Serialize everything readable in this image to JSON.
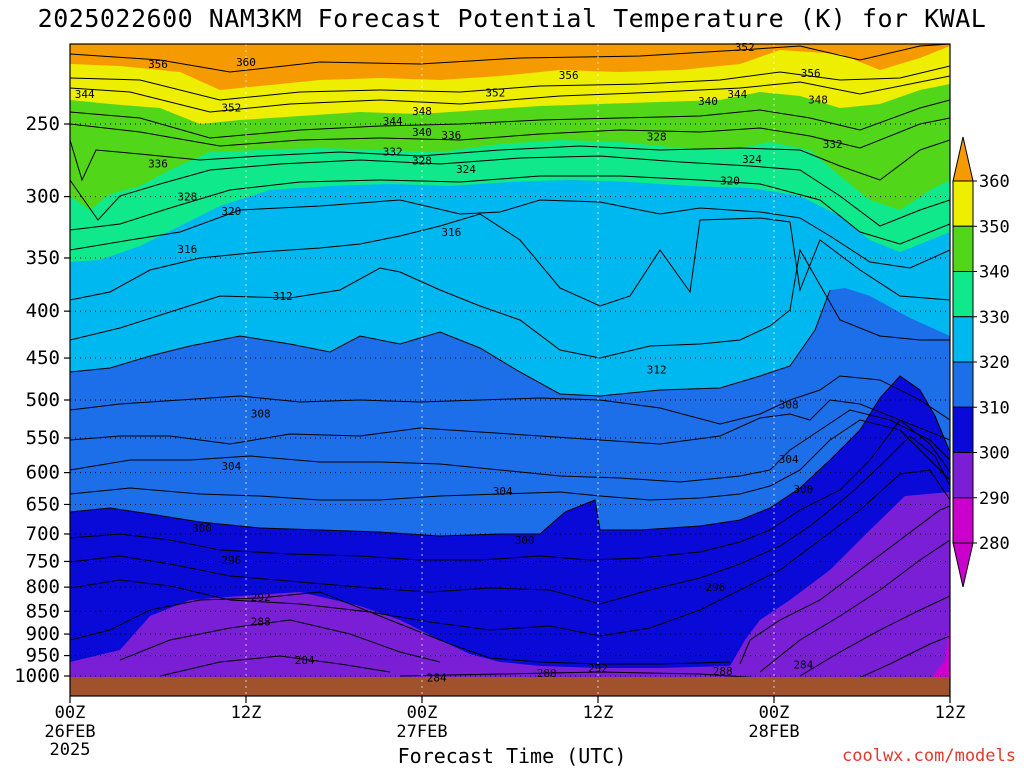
{
  "title": "2025022600 NAM3KM Forecast Potential Temperature (K) for KWAL",
  "credit": "coolwx.com/models",
  "x_axis_title": "Forecast Time (UTC)",
  "colors": {
    "ground": "#a0522d",
    "credit": "#e0392b",
    "band_280": "#cc00cc",
    "band_290": "#7a1fd6",
    "band_300": "#0a0ad8",
    "band_310": "#1c6fe8",
    "band_320": "#00b8f0",
    "band_330": "#10e88c",
    "band_340": "#52d61a",
    "band_350": "#eeee00",
    "band_360": "#f59a00"
  },
  "chart_data": {
    "type": "heatmap",
    "title": "2025022600 NAM3KM Forecast Potential Temperature (K) for KWAL",
    "xlabel": "Forecast Time (UTC)",
    "ylabel": "",
    "x_ticks": [
      {
        "label": "00Z",
        "sub": "26FEB",
        "sub2": "2025",
        "hour": 0
      },
      {
        "label": "12Z",
        "sub": "",
        "sub2": "",
        "hour": 12
      },
      {
        "label": "00Z",
        "sub": "27FEB",
        "sub2": "",
        "hour": 24
      },
      {
        "label": "12Z",
        "sub": "",
        "sub2": "",
        "hour": 36
      },
      {
        "label": "00Z",
        "sub": "28FEB",
        "sub2": "",
        "hour": 48
      },
      {
        "label": "12Z",
        "sub": "",
        "sub2": "",
        "hour": 60
      }
    ],
    "x_range_hours": [
      0,
      60
    ],
    "y_ticks_hpa": [
      250,
      300,
      350,
      400,
      450,
      500,
      550,
      600,
      650,
      700,
      750,
      800,
      850,
      900,
      950,
      1000
    ],
    "y_range_hpa": [
      200,
      1030
    ],
    "grid": "dotted",
    "colorbar": {
      "levels": [
        280,
        290,
        300,
        310,
        320,
        330,
        340,
        350,
        360
      ],
      "labels": [
        "280",
        "290",
        "300",
        "310",
        "320",
        "330",
        "340",
        "350",
        "360"
      ],
      "units": "K",
      "extend": "both"
    },
    "contour_labels": [
      {
        "text": "356",
        "hour": 6.0,
        "hpa": 215
      },
      {
        "text": "360",
        "hour": 12.0,
        "hpa": 214
      },
      {
        "text": "344",
        "hour": 1.0,
        "hpa": 232
      },
      {
        "text": "352",
        "hour": 11.0,
        "hpa": 240
      },
      {
        "text": "348",
        "hour": 24.0,
        "hpa": 242
      },
      {
        "text": "344",
        "hour": 22.0,
        "hpa": 248
      },
      {
        "text": "340",
        "hour": 24.0,
        "hpa": 255
      },
      {
        "text": "336",
        "hour": 26.0,
        "hpa": 257
      },
      {
        "text": "352",
        "hour": 29.0,
        "hpa": 231
      },
      {
        "text": "356",
        "hour": 34.0,
        "hpa": 221
      },
      {
        "text": "352",
        "hour": 46.0,
        "hpa": 206
      },
      {
        "text": "356",
        "hour": 50.5,
        "hpa": 220
      },
      {
        "text": "344",
        "hour": 45.5,
        "hpa": 232
      },
      {
        "text": "340",
        "hour": 43.5,
        "hpa": 236
      },
      {
        "text": "348",
        "hour": 51.0,
        "hpa": 235
      },
      {
        "text": "332",
        "hour": 22.0,
        "hpa": 268
      },
      {
        "text": "328",
        "hour": 24.0,
        "hpa": 274
      },
      {
        "text": "324",
        "hour": 27.0,
        "hpa": 280
      },
      {
        "text": "328",
        "hour": 40.0,
        "hpa": 258
      },
      {
        "text": "332",
        "hour": 52.0,
        "hpa": 263
      },
      {
        "text": "324",
        "hour": 46.5,
        "hpa": 273
      },
      {
        "text": "320",
        "hour": 45.0,
        "hpa": 288
      },
      {
        "text": "336",
        "hour": 6.0,
        "hpa": 276
      },
      {
        "text": "328",
        "hour": 8.0,
        "hpa": 300
      },
      {
        "text": "320",
        "hour": 11.0,
        "hpa": 311
      },
      {
        "text": "316",
        "hour": 8.0,
        "hpa": 342
      },
      {
        "text": "316",
        "hour": 26.0,
        "hpa": 328
      },
      {
        "text": "312",
        "hour": 14.5,
        "hpa": 385
      },
      {
        "text": "312",
        "hour": 40.0,
        "hpa": 463
      },
      {
        "text": "308",
        "hour": 13.0,
        "hpa": 517
      },
      {
        "text": "308",
        "hour": 49.0,
        "hpa": 506
      },
      {
        "text": "304",
        "hour": 11.0,
        "hpa": 590
      },
      {
        "text": "304",
        "hour": 29.5,
        "hpa": 628
      },
      {
        "text": "304",
        "hour": 49.0,
        "hpa": 580
      },
      {
        "text": "300",
        "hour": 9.0,
        "hpa": 690
      },
      {
        "text": "300",
        "hour": 31.0,
        "hpa": 711
      },
      {
        "text": "300",
        "hour": 50.0,
        "hpa": 625
      },
      {
        "text": "296",
        "hour": 11.0,
        "hpa": 747
      },
      {
        "text": "296",
        "hour": 44.0,
        "hpa": 800
      },
      {
        "text": "292",
        "hour": 13.0,
        "hpa": 820
      },
      {
        "text": "288",
        "hour": 13.0,
        "hpa": 872
      },
      {
        "text": "284",
        "hour": 16.0,
        "hpa": 961
      },
      {
        "text": "284",
        "hour": 50.0,
        "hpa": 971
      },
      {
        "text": "284",
        "hour": 25.0,
        "hpa": 1004
      },
      {
        "text": "288",
        "hour": 32.5,
        "hpa": 993
      },
      {
        "text": "292",
        "hour": 36.0,
        "hpa": 980
      },
      {
        "text": "288",
        "hour": 44.5,
        "hpa": 988
      }
    ]
  }
}
